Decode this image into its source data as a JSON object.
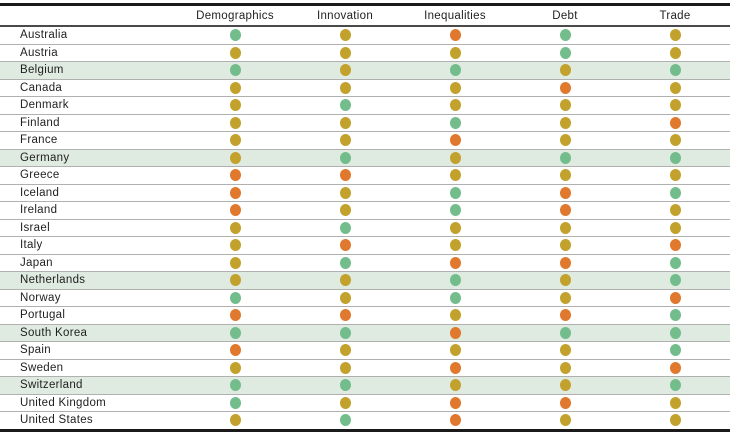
{
  "colors": {
    "text": "#1f1f1f",
    "outer_border": "#1a1a1a",
    "header_divider": "#4a4a4a",
    "row_divider": "#b0b0b0",
    "highlight_row_bg": "#dfebe0"
  },
  "chart_data": {
    "type": "table",
    "title": "",
    "columns": [
      "Demographics",
      "Innovation",
      "Inequalities",
      "Debt",
      "Trade"
    ],
    "dot_colors": {
      "green": "#73bd8c",
      "yellow": "#c2a12d",
      "orange": "#e0782d"
    },
    "highlighted_rows": [
      "Belgium",
      "Germany",
      "Netherlands",
      "South Korea",
      "Switzerland"
    ],
    "rows": [
      {
        "country": "Australia",
        "highlighted": false,
        "values": [
          "green",
          "yellow",
          "orange",
          "green",
          "yellow"
        ]
      },
      {
        "country": "Austria",
        "highlighted": false,
        "values": [
          "yellow",
          "yellow",
          "yellow",
          "green",
          "yellow"
        ]
      },
      {
        "country": "Belgium",
        "highlighted": true,
        "values": [
          "green",
          "yellow",
          "green",
          "yellow",
          "green"
        ]
      },
      {
        "country": "Canada",
        "highlighted": false,
        "values": [
          "yellow",
          "yellow",
          "yellow",
          "orange",
          "yellow"
        ]
      },
      {
        "country": "Denmark",
        "highlighted": false,
        "values": [
          "yellow",
          "green",
          "yellow",
          "yellow",
          "yellow"
        ]
      },
      {
        "country": "Finland",
        "highlighted": false,
        "values": [
          "yellow",
          "yellow",
          "green",
          "yellow",
          "orange"
        ]
      },
      {
        "country": "France",
        "highlighted": false,
        "values": [
          "yellow",
          "yellow",
          "orange",
          "yellow",
          "yellow"
        ]
      },
      {
        "country": "Germany",
        "highlighted": true,
        "values": [
          "yellow",
          "green",
          "yellow",
          "green",
          "green"
        ]
      },
      {
        "country": "Greece",
        "highlighted": false,
        "values": [
          "orange",
          "orange",
          "yellow",
          "yellow",
          "yellow"
        ]
      },
      {
        "country": "Iceland",
        "highlighted": false,
        "values": [
          "orange",
          "yellow",
          "green",
          "orange",
          "green"
        ]
      },
      {
        "country": "Ireland",
        "highlighted": false,
        "values": [
          "orange",
          "yellow",
          "green",
          "orange",
          "yellow"
        ]
      },
      {
        "country": "Israel",
        "highlighted": false,
        "values": [
          "yellow",
          "green",
          "yellow",
          "yellow",
          "yellow"
        ]
      },
      {
        "country": "Italy",
        "highlighted": false,
        "values": [
          "yellow",
          "orange",
          "yellow",
          "yellow",
          "orange"
        ]
      },
      {
        "country": "Japan",
        "highlighted": false,
        "values": [
          "yellow",
          "green",
          "orange",
          "orange",
          "green"
        ]
      },
      {
        "country": "Netherlands",
        "highlighted": true,
        "values": [
          "yellow",
          "yellow",
          "green",
          "yellow",
          "green"
        ]
      },
      {
        "country": "Norway",
        "highlighted": false,
        "values": [
          "green",
          "yellow",
          "green",
          "yellow",
          "orange"
        ]
      },
      {
        "country": "Portugal",
        "highlighted": false,
        "values": [
          "orange",
          "orange",
          "yellow",
          "orange",
          "green"
        ]
      },
      {
        "country": "South Korea",
        "highlighted": true,
        "values": [
          "green",
          "green",
          "orange",
          "green",
          "green"
        ]
      },
      {
        "country": "Spain",
        "highlighted": false,
        "values": [
          "orange",
          "yellow",
          "yellow",
          "yellow",
          "green"
        ]
      },
      {
        "country": "Sweden",
        "highlighted": false,
        "values": [
          "yellow",
          "yellow",
          "orange",
          "yellow",
          "orange"
        ]
      },
      {
        "country": "Switzerland",
        "highlighted": true,
        "values": [
          "green",
          "green",
          "yellow",
          "yellow",
          "green"
        ]
      },
      {
        "country": "United Kingdom",
        "highlighted": false,
        "values": [
          "green",
          "yellow",
          "orange",
          "orange",
          "yellow"
        ]
      },
      {
        "country": "United States",
        "highlighted": false,
        "values": [
          "yellow",
          "green",
          "orange",
          "yellow",
          "yellow"
        ]
      }
    ]
  }
}
